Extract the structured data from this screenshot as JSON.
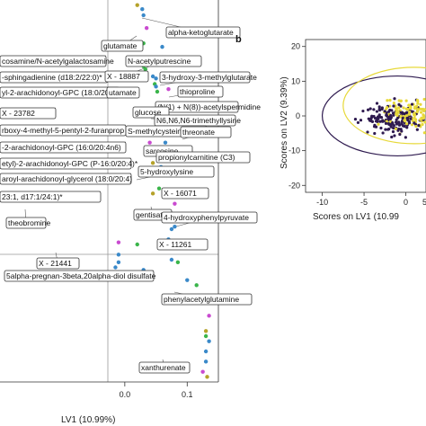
{
  "chart_data": [
    {
      "type": "scatter",
      "panel": "a",
      "xlabel": "LV1 (10.99%)",
      "ylabel": "",
      "xlim": [
        -0.2,
        0.15
      ],
      "ylim": [
        -0.55,
        0.2
      ],
      "x_ticks": [
        "0.0",
        "0.1"
      ],
      "points": [
        {
          "x": 0.02,
          "y": 0.19,
          "color": "#b5a22a"
        },
        {
          "x": 0.028,
          "y": 0.182,
          "color": "#3a89c9"
        },
        {
          "x": 0.03,
          "y": 0.17,
          "color": "#3a89c9"
        },
        {
          "x": 0.035,
          "y": 0.145,
          "color": "#c94ad0"
        },
        {
          "x": 0.03,
          "y": 0.115,
          "color": "#3ab54a"
        },
        {
          "x": 0.06,
          "y": 0.108,
          "color": "#3a89c9"
        },
        {
          "x": 0.06,
          "y": 0.087,
          "color": "#c94ad0"
        },
        {
          "x": 0.035,
          "y": 0.082,
          "color": "#3a89c9"
        },
        {
          "x": 0.03,
          "y": 0.076,
          "color": "#3a89c9"
        },
        {
          "x": 0.03,
          "y": 0.07,
          "color": "#3ab54a"
        },
        {
          "x": 0.033,
          "y": 0.064,
          "color": "#3ab54a"
        },
        {
          "x": 0.045,
          "y": 0.05,
          "color": "#3a89c9"
        },
        {
          "x": 0.05,
          "y": 0.046,
          "color": "#3a89c9"
        },
        {
          "x": 0.048,
          "y": 0.035,
          "color": "#3ab54a"
        },
        {
          "x": 0.05,
          "y": 0.03,
          "color": "#3a89c9"
        },
        {
          "x": 0.052,
          "y": 0.02,
          "color": "#3ab54a"
        },
        {
          "x": 0.058,
          "y": -0.005,
          "color": "#3a89c9"
        },
        {
          "x": 0.045,
          "y": -0.024,
          "color": "#3ab54a"
        },
        {
          "x": 0.058,
          "y": -0.05,
          "color": "#3ab54a"
        },
        {
          "x": 0.065,
          "y": -0.08,
          "color": "#3a89c9"
        },
        {
          "x": 0.04,
          "y": -0.08,
          "color": "#c94ad0"
        },
        {
          "x": 0.058,
          "y": -0.128,
          "color": "#3a89c9"
        },
        {
          "x": 0.045,
          "y": -0.12,
          "color": "#b5a22a"
        },
        {
          "x": 0.055,
          "y": -0.17,
          "color": "#3ab54a"
        },
        {
          "x": 0.045,
          "y": -0.18,
          "color": "#b5a22a"
        },
        {
          "x": 0.06,
          "y": -0.22,
          "color": "#3a89c9"
        },
        {
          "x": 0.075,
          "y": -0.25,
          "color": "#3a89c9"
        },
        {
          "x": 0.08,
          "y": -0.2,
          "color": "#c94ad0"
        },
        {
          "x": 0.08,
          "y": -0.245,
          "color": "#3a89c9"
        },
        {
          "x": 0.09,
          "y": -0.18,
          "color": "#3ab54a"
        },
        {
          "x": 0.09,
          "y": -0.225,
          "color": "#c94ad0"
        },
        {
          "x": 0.07,
          "y": -0.27,
          "color": "#3a89c9"
        },
        {
          "x": 0.075,
          "y": -0.31,
          "color": "#3a89c9"
        },
        {
          "x": 0.02,
          "y": -0.28,
          "color": "#3ab54a"
        },
        {
          "x": -0.01,
          "y": -0.276,
          "color": "#c94ad0"
        },
        {
          "x": -0.01,
          "y": -0.3,
          "color": "#3a89c9"
        },
        {
          "x": -0.01,
          "y": -0.315,
          "color": "#3a89c9"
        },
        {
          "x": -0.015,
          "y": -0.325,
          "color": "#3a89c9"
        },
        {
          "x": 0.085,
          "y": -0.315,
          "color": "#3ab54a"
        },
        {
          "x": 0.03,
          "y": -0.33,
          "color": "#3a89c9"
        },
        {
          "x": 0.1,
          "y": -0.35,
          "color": "#3a89c9"
        },
        {
          "x": 0.115,
          "y": -0.36,
          "color": "#3ab54a"
        },
        {
          "x": 0.12,
          "y": -0.39,
          "color": "#3a89c9"
        },
        {
          "x": 0.135,
          "y": -0.42,
          "color": "#c94ad0"
        },
        {
          "x": 0.13,
          "y": -0.45,
          "color": "#b5a22a"
        },
        {
          "x": 0.13,
          "y": -0.46,
          "color": "#3ab54a"
        },
        {
          "x": 0.135,
          "y": -0.47,
          "color": "#3a89c9"
        },
        {
          "x": 0.13,
          "y": -0.49,
          "color": "#3a89c9"
        },
        {
          "x": 0.13,
          "y": -0.51,
          "color": "#3a89c9"
        },
        {
          "x": 0.125,
          "y": -0.53,
          "color": "#c94ad0"
        },
        {
          "x": 0.132,
          "y": -0.54,
          "color": "#b5a22a"
        },
        {
          "x": -0.1,
          "y": -0.06,
          "color": "#c94ad0"
        },
        {
          "x": 0.085,
          "y": -0.06,
          "color": "#c94ad0"
        },
        {
          "x": 0.07,
          "y": 0.025,
          "color": "#c94ad0"
        }
      ],
      "annotations": [
        {
          "text": "alpha-ketoglutarate"
        },
        {
          "text": "glutamate"
        },
        {
          "text": "cosamine/N-acetylgalactosamine"
        },
        {
          "text": "N-acetylputrescine"
        },
        {
          "text": "-sphingadienine (d18:2/22:0)*"
        },
        {
          "text": "X - 18887"
        },
        {
          "text": "3-hydroxy-3-methylglutarate"
        },
        {
          "text": "yl-2-arachidonoyl-GPC (18:0/20:4)"
        },
        {
          "text": "utamate"
        },
        {
          "text": "thioproline"
        },
        {
          "text": "X - 23782"
        },
        {
          "text": "(N(1) + N(8))-acetylspermidine"
        },
        {
          "text": "glucose"
        },
        {
          "text": "N6,N6,N6-trimethyllysine"
        },
        {
          "text": "rboxy-4-methyl-5-pentyl-2-furanprop"
        },
        {
          "text": "S-methylcysteine"
        },
        {
          "text": "threonate"
        },
        {
          "text": "-2-arachidonoyl-GPC (16:0/20:4n6)"
        },
        {
          "text": "sarcosine"
        },
        {
          "text": "etyl)-2-arachidonoyl-GPC (P-16:0/20:4)*"
        },
        {
          "text": "propionylcarnitine (C3)"
        },
        {
          "text": "5-hydroxylysine"
        },
        {
          "text": "aroyl-arachidonoyl-glycerol (18:0/20:4)"
        },
        {
          "text": "23:1, d17:1/24:1)*"
        },
        {
          "text": "X - 16071"
        },
        {
          "text": "theobromine"
        },
        {
          "text": "gentisate"
        },
        {
          "text": "4-hydroxyphenylpyruvate"
        },
        {
          "text": "X - 11261"
        },
        {
          "text": "X - 21441"
        },
        {
          "text": "5alpha-pregnan-3beta,20alpha-diol disulfate"
        },
        {
          "text": "phenylacetylglutamine"
        },
        {
          "text": "xanthurenate"
        }
      ]
    },
    {
      "type": "scatter",
      "panel": "b",
      "xlabel": "Scores on LV1 (10.99",
      "ylabel": "Scores on LV2 (9.39%)",
      "xlim": [
        -12,
        5
      ],
      "ylim": [
        -22,
        22
      ],
      "x_ticks": [
        "-10",
        "-5",
        "0",
        "5"
      ],
      "y_ticks": [
        "-20",
        "-10",
        "0",
        "10",
        "20"
      ],
      "groups": [
        {
          "color": "#2e1a4f"
        },
        {
          "color": "#e7d93a"
        }
      ],
      "ellipses": [
        {
          "group": 0,
          "center": [
            -1.0,
            0
          ],
          "rx": 9.0,
          "ry": 11.5,
          "color": "#2e1a4f"
        },
        {
          "group": 1,
          "center": [
            1.0,
            3.0
          ],
          "rx": 8.5,
          "ry": 11.0,
          "color": "#e7d93a"
        }
      ]
    }
  ],
  "label": "b"
}
